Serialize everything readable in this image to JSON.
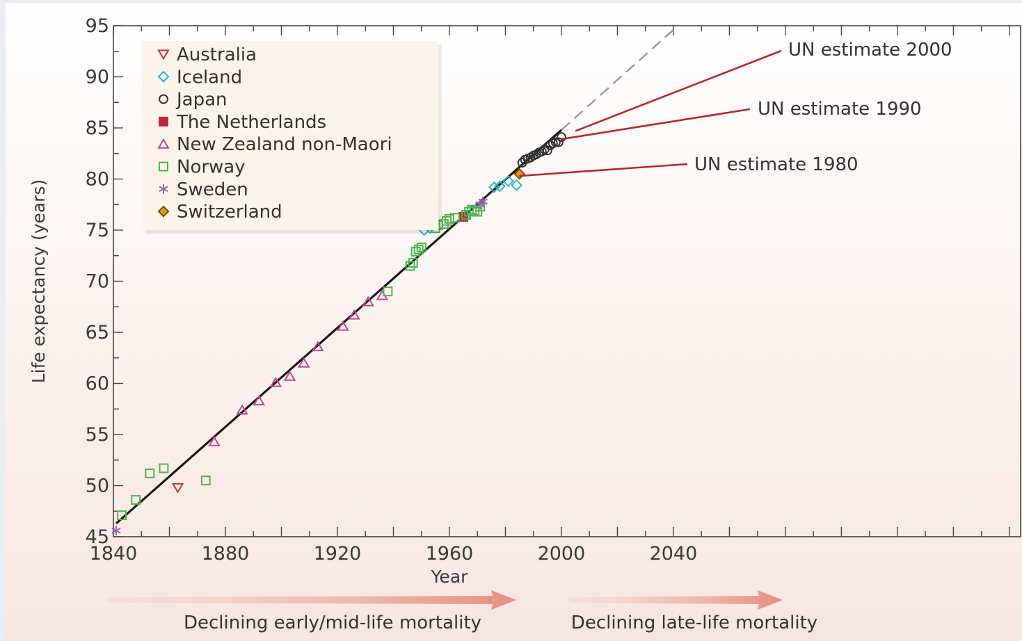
{
  "chart_data": {
    "type": "scatter",
    "xlabel": "Year",
    "ylabel": "Life expectancy (years)",
    "xlim": [
      1840,
      2164
    ],
    "ylim": [
      45,
      95
    ],
    "xticks": [
      1840,
      1880,
      1920,
      1960,
      2000,
      2040
    ],
    "yticks": [
      45,
      50,
      55,
      60,
      65,
      70,
      75,
      80,
      85,
      90,
      95
    ],
    "legend_position": "top-left",
    "trend_line": {
      "x": [
        1841,
        2000
      ],
      "y": [
        46.3,
        84.8
      ]
    },
    "trend_extension": {
      "x": [
        2000,
        2040
      ],
      "y": [
        84.8,
        94.6
      ]
    },
    "colors": {
      "Australia": "#c0392b",
      "Iceland": "#2bb5d4",
      "Japan": "#333333",
      "The Netherlands": "#c0263a",
      "New Zealand non-Maori": "#c2458f",
      "Norway": "#49b64c",
      "Sweden": "#9a5fb8",
      "Switzerland": "#e39a1c",
      "trend": "#1a1a1a",
      "un_line": "#b7262f",
      "arrow": "#e8958a"
    },
    "series": [
      {
        "name": "Australia",
        "marker": "triangle-down",
        "points": [
          [
            1863,
            49.8
          ]
        ]
      },
      {
        "name": "Iceland",
        "marker": "diamond",
        "points": [
          [
            1951,
            75.0
          ],
          [
            1953,
            75.2
          ],
          [
            1966,
            76.4
          ],
          [
            1976,
            79.2
          ],
          [
            1978,
            79.3
          ],
          [
            1981,
            79.8
          ],
          [
            1984,
            79.4
          ]
        ]
      },
      {
        "name": "Japan",
        "marker": "circle",
        "points": [
          [
            1986,
            81.6
          ],
          [
            1987,
            81.9
          ],
          [
            1988,
            82.0
          ],
          [
            1989,
            82.1
          ],
          [
            1990,
            82.3
          ],
          [
            1991,
            82.4
          ],
          [
            1992,
            82.6
          ],
          [
            1993,
            82.7
          ],
          [
            1994,
            82.9
          ],
          [
            1995,
            82.8
          ],
          [
            1996,
            83.3
          ],
          [
            1997,
            83.5
          ],
          [
            1998,
            83.6
          ],
          [
            1999,
            83.6
          ],
          [
            2000,
            84.1
          ]
        ]
      },
      {
        "name": "The Netherlands",
        "marker": "square-filled",
        "points": [
          [
            1965,
            76.3
          ]
        ]
      },
      {
        "name": "New Zealand non-Maori",
        "marker": "triangle-up",
        "points": [
          [
            1876,
            54.3
          ],
          [
            1886,
            57.4
          ],
          [
            1892,
            58.3
          ],
          [
            1898,
            60.1
          ],
          [
            1903,
            60.7
          ],
          [
            1908,
            62.0
          ],
          [
            1913,
            63.6
          ],
          [
            1922,
            65.6
          ],
          [
            1926,
            66.7
          ],
          [
            1931,
            68.0
          ],
          [
            1936,
            68.6
          ]
        ]
      },
      {
        "name": "Norway",
        "marker": "square",
        "points": [
          [
            1843,
            47.1
          ],
          [
            1848,
            48.6
          ],
          [
            1853,
            51.2
          ],
          [
            1858,
            51.7
          ],
          [
            1873,
            50.5
          ],
          [
            1938,
            69.0
          ],
          [
            1946,
            71.5
          ],
          [
            1947,
            71.8
          ],
          [
            1948,
            72.9
          ],
          [
            1949,
            73.1
          ],
          [
            1950,
            73.3
          ],
          [
            1955,
            75.2
          ],
          [
            1956,
            75.5
          ],
          [
            1958,
            75.6
          ],
          [
            1959,
            75.9
          ],
          [
            1960,
            76.1
          ],
          [
            1962,
            76.2
          ],
          [
            1966,
            76.5
          ],
          [
            1967,
            76.8
          ],
          [
            1968,
            77.0
          ],
          [
            1969,
            76.9
          ],
          [
            1970,
            76.8
          ],
          [
            1971,
            77.3
          ]
        ]
      },
      {
        "name": "Sweden",
        "marker": "asterisk",
        "points": [
          [
            1841,
            45.6
          ],
          [
            1971,
            77.5
          ],
          [
            1972,
            77.8
          ]
        ]
      },
      {
        "name": "Switzerland",
        "marker": "diamond-filled",
        "points": [
          [
            1985,
            80.5
          ]
        ]
      }
    ],
    "annotations": [
      {
        "text": "UN estimate 2000",
        "point": [
          2005,
          84.7
        ]
      },
      {
        "text": "UN estimate 1990",
        "point": [
          2000,
          83.9
        ]
      },
      {
        "text": "UN estimate 1980",
        "point": [
          1985,
          80.3
        ]
      }
    ],
    "arrows": [
      {
        "label": "Declining early/mid-life mortality"
      },
      {
        "label": "Declining late-life mortality"
      }
    ]
  }
}
